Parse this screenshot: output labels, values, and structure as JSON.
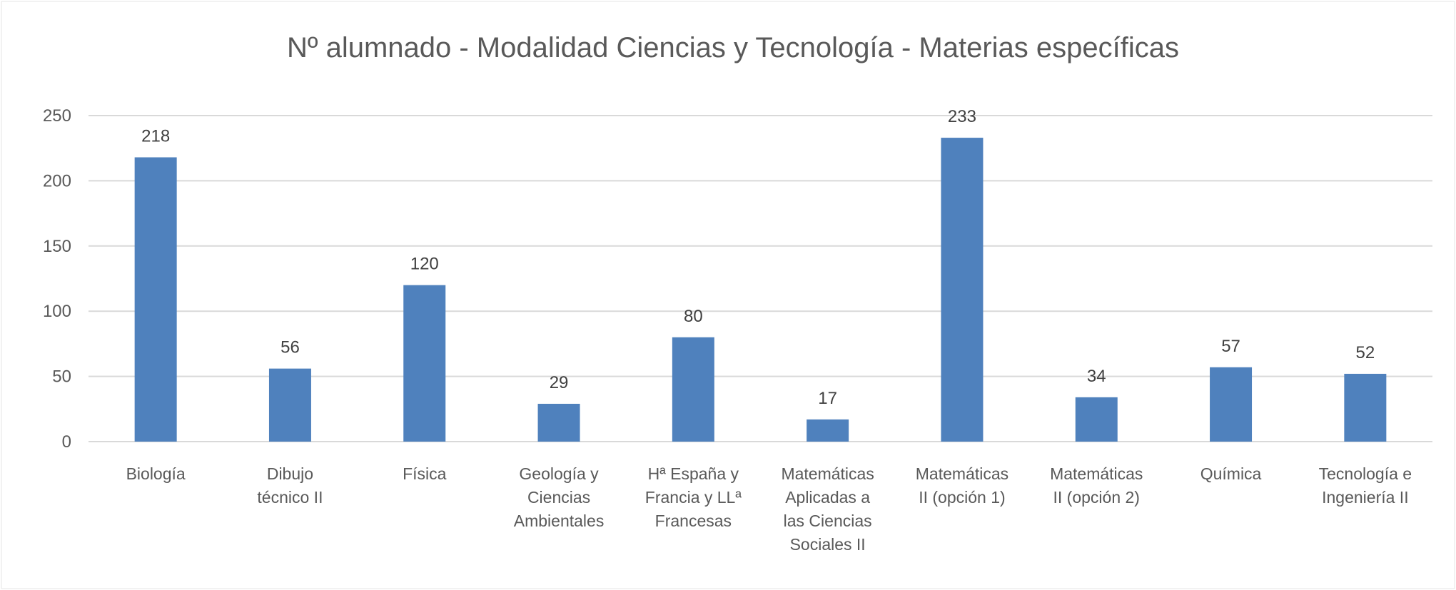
{
  "chart_data": {
    "type": "bar",
    "title": "Nº alumnado - Modalidad Ciencias y Tecnología - Materias específicas",
    "xlabel": "",
    "ylabel": "",
    "ylim": [
      0,
      250
    ],
    "yticks": [
      0,
      50,
      100,
      150,
      200,
      250
    ],
    "grid": true,
    "legend": "none",
    "bar_color": "#4F81BD",
    "categories": [
      [
        "Biología"
      ],
      [
        "Dibujo",
        "técnico II"
      ],
      [
        "Física"
      ],
      [
        "Geología y",
        "Ciencias",
        "Ambientales"
      ],
      [
        "Hª España y",
        "Francia y LLª",
        "Francesas"
      ],
      [
        "Matemáticas",
        "Aplicadas a",
        "las Ciencias",
        "Sociales II"
      ],
      [
        "Matemáticas",
        "II (opción 1)"
      ],
      [
        "Matemáticas",
        "II (opción 2)"
      ],
      [
        "Química"
      ],
      [
        "Tecnología e",
        "Ingeniería II"
      ]
    ],
    "values": [
      218,
      56,
      120,
      29,
      80,
      17,
      233,
      34,
      57,
      52
    ],
    "data_labels": [
      "218",
      "56",
      "120",
      "29",
      "80",
      "17",
      "233",
      "34",
      "57",
      "52"
    ]
  }
}
